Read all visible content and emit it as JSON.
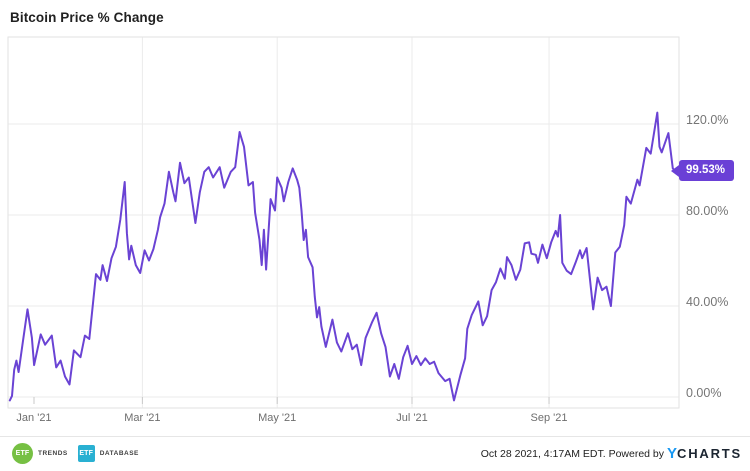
{
  "header": {
    "title": "Bitcoin Price % Change"
  },
  "chart_data": {
    "type": "line",
    "title": "Bitcoin Price % Change",
    "grid": true,
    "legend": "none",
    "line_color": "#6a43d4",
    "badge_color": "#6a40d6",
    "grid_color": "#ebebeb",
    "border_color": "#e2e2e2",
    "tick_color": "#c9c9c9",
    "last_value": 99.53,
    "last_value_label": "99.53%",
    "ylim": [
      -4.8,
      158.5
    ],
    "y_ticks": [
      {
        "label": "0.00%",
        "value": 0
      },
      {
        "label": "40.00%",
        "value": 40
      },
      {
        "label": "80.00%",
        "value": 80
      },
      {
        "label": "120.0%",
        "value": 120
      }
    ],
    "x_ticks": [
      {
        "label": "Jan '21",
        "date": "2021-01-01"
      },
      {
        "label": "Mar '21",
        "date": "2021-03-01"
      },
      {
        "label": "May '21",
        "date": "2021-05-01"
      },
      {
        "label": "Jul '21",
        "date": "2021-07-01"
      },
      {
        "label": "Sep '21",
        "date": "2021-09-01"
      }
    ],
    "series": [
      {
        "name": "Bitcoin Price % Change",
        "unit": "%",
        "points": [
          [
            "2020-12-31",
            -1.5
          ],
          [
            "2021-01-01",
            0.5
          ],
          [
            "2021-01-02",
            12
          ],
          [
            "2021-01-03",
            16
          ],
          [
            "2021-01-04",
            11
          ],
          [
            "2021-01-06",
            25
          ],
          [
            "2021-01-08",
            38.5
          ],
          [
            "2021-01-10",
            26
          ],
          [
            "2021-01-11",
            14
          ],
          [
            "2021-01-14",
            27.5
          ],
          [
            "2021-01-16",
            23
          ],
          [
            "2021-01-19",
            27
          ],
          [
            "2021-01-21",
            13
          ],
          [
            "2021-01-23",
            16
          ],
          [
            "2021-01-25",
            9
          ],
          [
            "2021-01-27",
            5.5
          ],
          [
            "2021-01-29",
            20.5
          ],
          [
            "2021-02-01",
            17.5
          ],
          [
            "2021-02-03",
            27
          ],
          [
            "2021-02-05",
            25.5
          ],
          [
            "2021-02-08",
            54
          ],
          [
            "2021-02-10",
            51.5
          ],
          [
            "2021-02-11",
            58
          ],
          [
            "2021-02-13",
            51
          ],
          [
            "2021-02-15",
            61
          ],
          [
            "2021-02-17",
            66
          ],
          [
            "2021-02-19",
            78
          ],
          [
            "2021-02-21",
            94.5
          ],
          [
            "2021-02-22",
            72
          ],
          [
            "2021-02-23",
            60.5
          ],
          [
            "2021-02-24",
            66.5
          ],
          [
            "2021-02-26",
            58
          ],
          [
            "2021-02-28",
            54.5
          ],
          [
            "2021-03-02",
            64.5
          ],
          [
            "2021-03-04",
            60
          ],
          [
            "2021-03-06",
            65
          ],
          [
            "2021-03-08",
            73.5
          ],
          [
            "2021-03-09",
            79
          ],
          [
            "2021-03-11",
            85
          ],
          [
            "2021-03-13",
            99
          ],
          [
            "2021-03-15",
            90
          ],
          [
            "2021-03-16",
            86
          ],
          [
            "2021-03-18",
            103
          ],
          [
            "2021-03-20",
            94
          ],
          [
            "2021-03-22",
            96.5
          ],
          [
            "2021-03-25",
            76.5
          ],
          [
            "2021-03-27",
            90
          ],
          [
            "2021-03-29",
            99
          ],
          [
            "2021-03-31",
            101
          ],
          [
            "2021-04-02",
            96.5
          ],
          [
            "2021-04-05",
            101
          ],
          [
            "2021-04-07",
            92
          ],
          [
            "2021-04-10",
            99
          ],
          [
            "2021-04-12",
            101
          ],
          [
            "2021-04-14",
            116.5
          ],
          [
            "2021-04-16",
            110
          ],
          [
            "2021-04-18",
            93
          ],
          [
            "2021-04-20",
            94.5
          ],
          [
            "2021-04-21",
            81
          ],
          [
            "2021-04-23",
            69
          ],
          [
            "2021-04-24",
            58
          ],
          [
            "2021-04-25",
            73.5
          ],
          [
            "2021-04-26",
            56
          ],
          [
            "2021-04-28",
            87
          ],
          [
            "2021-04-30",
            82
          ],
          [
            "2021-05-01",
            96.5
          ],
          [
            "2021-05-03",
            92
          ],
          [
            "2021-05-04",
            86
          ],
          [
            "2021-05-06",
            94.5
          ],
          [
            "2021-05-08",
            100.5
          ],
          [
            "2021-05-10",
            95.5
          ],
          [
            "2021-05-11",
            92
          ],
          [
            "2021-05-12",
            82
          ],
          [
            "2021-05-13",
            69
          ],
          [
            "2021-05-14",
            73.5
          ],
          [
            "2021-05-15",
            61.5
          ],
          [
            "2021-05-17",
            57
          ],
          [
            "2021-05-18",
            44
          ],
          [
            "2021-05-19",
            35
          ],
          [
            "2021-05-20",
            39.5
          ],
          [
            "2021-05-21",
            31
          ],
          [
            "2021-05-23",
            22
          ],
          [
            "2021-05-26",
            34
          ],
          [
            "2021-05-28",
            24
          ],
          [
            "2021-05-30",
            20
          ],
          [
            "2021-06-02",
            28
          ],
          [
            "2021-06-04",
            21
          ],
          [
            "2021-06-06",
            23
          ],
          [
            "2021-06-08",
            14
          ],
          [
            "2021-06-10",
            26
          ],
          [
            "2021-06-13",
            33
          ],
          [
            "2021-06-15",
            37
          ],
          [
            "2021-06-17",
            28
          ],
          [
            "2021-06-19",
            22
          ],
          [
            "2021-06-21",
            9
          ],
          [
            "2021-06-23",
            14.5
          ],
          [
            "2021-06-25",
            8
          ],
          [
            "2021-06-27",
            17.5
          ],
          [
            "2021-06-29",
            22.5
          ],
          [
            "2021-07-01",
            14.5
          ],
          [
            "2021-07-03",
            18
          ],
          [
            "2021-07-05",
            14
          ],
          [
            "2021-07-07",
            17
          ],
          [
            "2021-07-09",
            14.5
          ],
          [
            "2021-07-11",
            15.5
          ],
          [
            "2021-07-13",
            10.5
          ],
          [
            "2021-07-16",
            7
          ],
          [
            "2021-07-18",
            8
          ],
          [
            "2021-07-20",
            -1.5
          ],
          [
            "2021-07-23",
            10
          ],
          [
            "2021-07-25",
            17
          ],
          [
            "2021-07-26",
            30
          ],
          [
            "2021-07-28",
            36
          ],
          [
            "2021-07-31",
            42
          ],
          [
            "2021-08-02",
            31.5
          ],
          [
            "2021-08-04",
            35.5
          ],
          [
            "2021-08-06",
            47
          ],
          [
            "2021-08-08",
            50.5
          ],
          [
            "2021-08-10",
            56.5
          ],
          [
            "2021-08-12",
            52
          ],
          [
            "2021-08-13",
            61.5
          ],
          [
            "2021-08-15",
            58
          ],
          [
            "2021-08-17",
            51.5
          ],
          [
            "2021-08-19",
            56
          ],
          [
            "2021-08-21",
            67.5
          ],
          [
            "2021-08-23",
            68
          ],
          [
            "2021-08-24",
            63
          ],
          [
            "2021-08-26",
            62.5
          ],
          [
            "2021-08-27",
            59
          ],
          [
            "2021-08-29",
            67
          ],
          [
            "2021-08-31",
            61
          ],
          [
            "2021-09-02",
            68
          ],
          [
            "2021-09-04",
            73
          ],
          [
            "2021-09-05",
            70.5
          ],
          [
            "2021-09-06",
            80
          ],
          [
            "2021-09-07",
            59
          ],
          [
            "2021-09-09",
            55.5
          ],
          [
            "2021-09-11",
            54
          ],
          [
            "2021-09-13",
            59
          ],
          [
            "2021-09-15",
            64.5
          ],
          [
            "2021-09-16",
            61
          ],
          [
            "2021-09-18",
            65.5
          ],
          [
            "2021-09-21",
            38.5
          ],
          [
            "2021-09-23",
            52.5
          ],
          [
            "2021-09-25",
            47
          ],
          [
            "2021-09-27",
            48.5
          ],
          [
            "2021-09-29",
            40
          ],
          [
            "2021-10-01",
            63.5
          ],
          [
            "2021-10-03",
            66
          ],
          [
            "2021-10-05",
            75.5
          ],
          [
            "2021-10-06",
            88
          ],
          [
            "2021-10-08",
            85
          ],
          [
            "2021-10-11",
            95.5
          ],
          [
            "2021-10-12",
            93
          ],
          [
            "2021-10-15",
            109.5
          ],
          [
            "2021-10-17",
            107
          ],
          [
            "2021-10-20",
            125
          ],
          [
            "2021-10-21",
            110
          ],
          [
            "2021-10-22",
            107.5
          ],
          [
            "2021-10-25",
            116
          ],
          [
            "2021-10-27",
            100.5
          ],
          [
            "2021-10-28",
            99.53
          ]
        ]
      }
    ]
  },
  "footer": {
    "logos": [
      {
        "name": "ETF Trends",
        "badge": "ETF",
        "suffix": "TRENDS",
        "color": "#76c043",
        "shape": "circle"
      },
      {
        "name": "ETF Database",
        "badge": "ETF",
        "suffix": "DATABASE",
        "color": "#29b0d2",
        "shape": "square"
      }
    ],
    "timestamp": "Oct 28 2021, 4:17AM EDT. Powered by",
    "brand": {
      "y": "Y",
      "rest": "CHARTS",
      "y_color": "#1697f2"
    }
  }
}
